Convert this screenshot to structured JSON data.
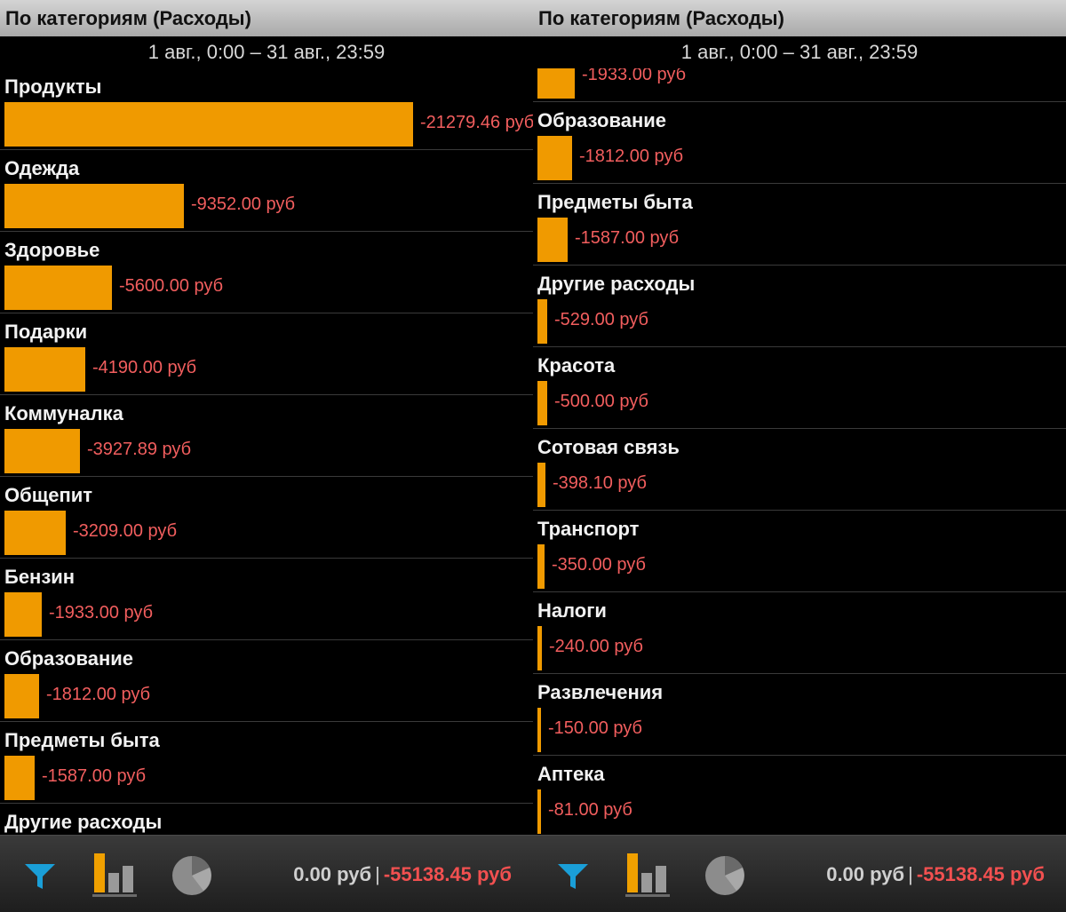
{
  "app": {
    "title": "По категориям (Расходы)",
    "date_range": "1 авг., 0:00 – 31 авг., 23:59"
  },
  "colors": {
    "bar": "#f09a00",
    "amount": "#f25e5e",
    "total_expense": "#f25050",
    "filter_icon": "#1a9fd8"
  },
  "max_value": 21279.46,
  "left_panel": {
    "rows": [
      {
        "name": "Продукты",
        "amount": "-21279.46 руб",
        "value": 21279.46
      },
      {
        "name": "Одежда",
        "amount": "-9352.00 руб",
        "value": 9352.0
      },
      {
        "name": "Здоровье",
        "amount": "-5600.00 руб",
        "value": 5600.0
      },
      {
        "name": "Подарки",
        "amount": "-4190.00 руб",
        "value": 4190.0
      },
      {
        "name": "Коммуналка",
        "amount": "-3927.89 руб",
        "value": 3927.89
      },
      {
        "name": "Общепит",
        "amount": "-3209.00 руб",
        "value": 3209.0
      },
      {
        "name": "Бензин",
        "amount": "-1933.00 руб",
        "value": 1933.0
      },
      {
        "name": "Образование",
        "amount": "-1812.00 руб",
        "value": 1812.0
      },
      {
        "name": "Предметы быта",
        "amount": "-1587.00 руб",
        "value": 1587.0
      },
      {
        "name": "Другие расходы",
        "amount": "",
        "value": 529.0
      }
    ]
  },
  "right_panel": {
    "rows": [
      {
        "name": "",
        "amount": "-1933.00 руб",
        "value": 1933.0
      },
      {
        "name": "Образование",
        "amount": "-1812.00 руб",
        "value": 1812.0
      },
      {
        "name": "Предметы быта",
        "amount": "-1587.00 руб",
        "value": 1587.0
      },
      {
        "name": "Другие расходы",
        "amount": "-529.00 руб",
        "value": 529.0
      },
      {
        "name": "Красота",
        "amount": "-500.00 руб",
        "value": 500.0
      },
      {
        "name": "Сотовая связь",
        "amount": "-398.10 руб",
        "value": 398.1
      },
      {
        "name": "Транспорт",
        "amount": "-350.00 руб",
        "value": 350.0
      },
      {
        "name": "Налоги",
        "amount": "-240.00 руб",
        "value": 240.0
      },
      {
        "name": "Развлечения",
        "amount": "-150.00 руб",
        "value": 150.0
      },
      {
        "name": "Аптека",
        "amount": "-81.00 руб",
        "value": 81.0
      }
    ]
  },
  "footer": {
    "income_total": "0.00 руб",
    "separator": "|",
    "expense_total": "-55138.45 руб",
    "icons": [
      "filter-icon",
      "bar-chart-icon",
      "pie-chart-icon"
    ]
  }
}
